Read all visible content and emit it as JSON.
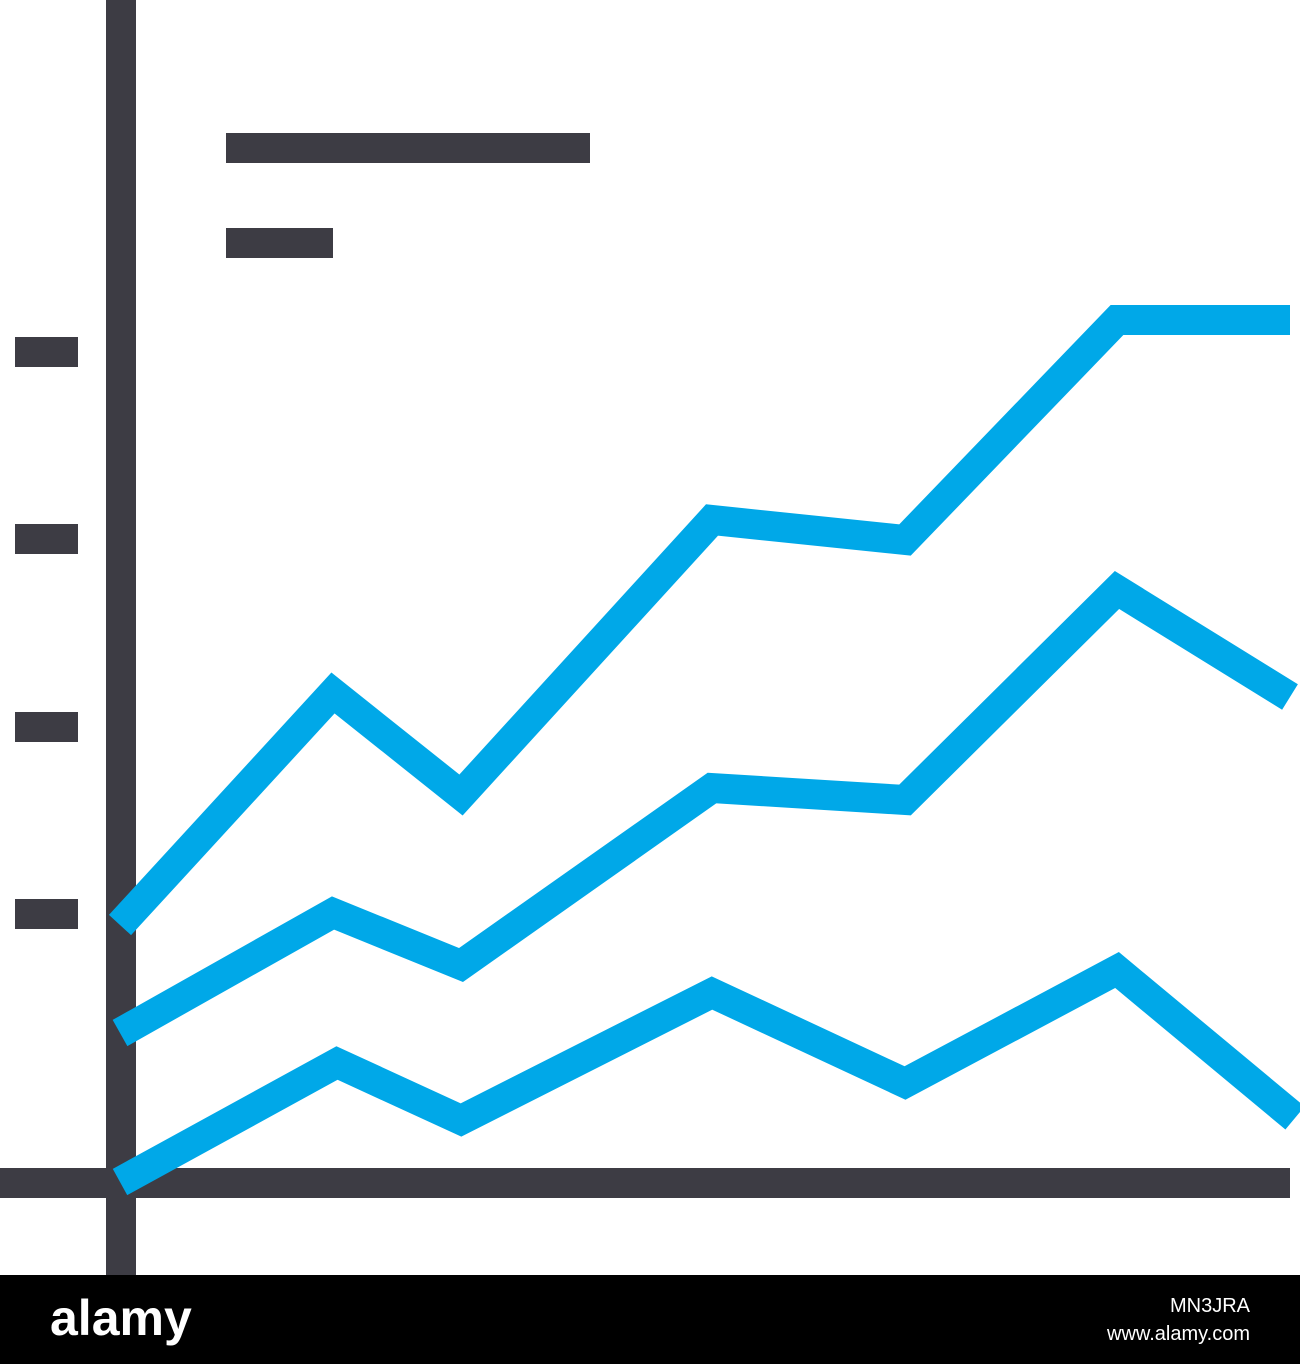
{
  "watermark": {
    "brand": "alamy",
    "image_id": "MN3JRA",
    "url": "www.alamy.com"
  }
}
